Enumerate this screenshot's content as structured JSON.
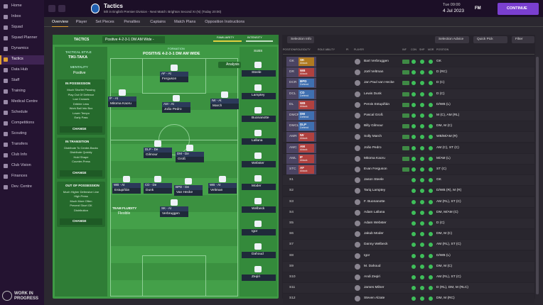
{
  "sidebar": {
    "items": [
      "Home",
      "Inbox",
      "Squad",
      "Squad Planner",
      "Dynamics",
      "Tactics",
      "Data Hub",
      "Staff",
      "Training",
      "Medical Centre",
      "Schedule",
      "Competitions",
      "Scouting",
      "Transfers",
      "Club Info",
      "Club Vision",
      "Finances",
      "Dev. Centre"
    ],
    "active": "Tactics",
    "footer": [
      "WORK IN",
      "PROGRESS"
    ]
  },
  "header": {
    "title": "Tactics",
    "subtitle": "5th in English Premier Division - Next Match: Brighton Second XI (N) (Today 20:00)",
    "time": "Tue 09:00",
    "date": "4 Jul 2023",
    "logo": "FM",
    "continue": "CONTINUE"
  },
  "tabs": [
    "Overview",
    "Player",
    "Set Pieces",
    "Penalties",
    "Captains",
    "Match Plans",
    "Opposition Instructions"
  ],
  "tactic": {
    "label": "TACTICS",
    "name": "Positive 4-2-3-1 DM AM Wide -",
    "familiarity": "FAMILIARITY",
    "intensity": "INTENSITY",
    "formation_label": "FORMATION",
    "formation": "POSITIVE 4-2-3-1 DM AM WIDE",
    "style_label": "TACTICAL STYLE",
    "style": "TIKI-TAKA",
    "mentality_label": "MENTALITY",
    "mentality": "Positive",
    "analysis": "Analysis",
    "fluidity_label": "TEAM FLUIDITY",
    "fluidity": "Flexible",
    "subs_label": "SUBS",
    "instructions": [
      {
        "title": "IN POSSESSION",
        "items": [
          "Much Shorter Passing",
          "Play Out Of Defence",
          "Low Crosses",
          "Dribble Less",
          "Work Ball Into Box",
          "Lower Tempo",
          "Early Pass"
        ],
        "button": "CHANGE"
      },
      {
        "title": "IN TRANSITION",
        "items": [
          "Distribute To Centre-Backs",
          "Distribute Quickly",
          "Hold Shape",
          "Counter-Press"
        ],
        "button": "CHANGE"
      },
      {
        "title": "OUT OF POSSESSION",
        "items": [
          "Much Higher Defensive Line",
          "High Press",
          "Much More Often",
          "Prevent Short GK",
          "Distribution"
        ],
        "button": "CHANGE"
      }
    ]
  },
  "pitch": [
    {
      "name": "Ferguson",
      "role": "AF - At"
    },
    {
      "name": "Mitoma Kaoru",
      "role": "IF - At"
    },
    {
      "name": "João Pedro",
      "role": "AM - At"
    },
    {
      "name": "March",
      "role": "IW - At"
    },
    {
      "name": "Gilmour",
      "role": "DLP - De"
    },
    {
      "name": "Groß",
      "role": "DM - De"
    },
    {
      "name": "Estupiñán",
      "role": "WB - At"
    },
    {
      "name": "Dunk",
      "role": "CD - De"
    },
    {
      "name": "Van Hecke",
      "role": "BPD - De"
    },
    {
      "name": "Veltman",
      "role": "WB - At"
    },
    {
      "name": "Verbruggen",
      "role": "SK - At"
    }
  ],
  "subs": [
    "Steele",
    "Lamptey",
    "Buonanotte",
    "Lallana",
    "Webster",
    "Moder",
    "Welbeck",
    "Igor",
    "Dahoud",
    "Zeqiri"
  ],
  "table": {
    "buttons": [
      "Selection Info",
      "Selection Advice",
      "Quick Pick",
      "Filter"
    ],
    "columns": [
      "POSITION/ROLE/DUTY",
      "ROLE ABILITY",
      "PI",
      "PLAYER",
      "INF",
      "CON",
      "SHP",
      "MOR",
      "POSITION"
    ],
    "rows": [
      {
        "pos": "GK",
        "role": "SK",
        "duty": "Attack",
        "player": "Bart Verbruggen",
        "positions": "GK"
      },
      {
        "pos": "DR",
        "role": "WB",
        "duty": "Attack",
        "player": "Joël Veltman",
        "positions": "D (RC)"
      },
      {
        "pos": "DCR",
        "role": "BPD",
        "duty": "Defend",
        "player": "Jan Paul van Hecke",
        "positions": "D (C)"
      },
      {
        "pos": "DCL",
        "role": "CD",
        "duty": "Defend",
        "player": "Lewis Dunk",
        "positions": "D (C)"
      },
      {
        "pos": "DL",
        "role": "WB",
        "duty": "Attack",
        "player": "Pervis Estupiñán",
        "positions": "D/WB (L)"
      },
      {
        "pos": "DMCR",
        "role": "DM",
        "duty": "Defend",
        "player": "Pascal Groß",
        "positions": "M (C), AM (RL)"
      },
      {
        "pos": "DMCL",
        "role": "DLP",
        "duty": "Defend",
        "player": "Billy Gilmour",
        "positions": "DM, M (C)"
      },
      {
        "pos": "AMR",
        "role": "IW",
        "duty": "Attack",
        "player": "Solly March",
        "positions": "WB/M/AM (R)"
      },
      {
        "pos": "AMC",
        "role": "AM",
        "duty": "Attack",
        "player": "João Pedro",
        "positions": "AM (C), ST (C)"
      },
      {
        "pos": "AML",
        "role": "IF",
        "duty": "Attack",
        "player": "Mitoma Kaoru",
        "positions": "M/AM (L)"
      },
      {
        "pos": "STC",
        "role": "AF",
        "duty": "Attack",
        "player": "Evan Ferguson",
        "positions": "ST (C)"
      },
      {
        "pos": "S1",
        "player": "Jason Steele",
        "positions": "GK"
      },
      {
        "pos": "S2",
        "player": "Tariq Lamptey",
        "positions": "D/WB (R), M (R)"
      },
      {
        "pos": "S3",
        "player": "F. Buonanotte",
        "positions": "AM (RL), ST (C)"
      },
      {
        "pos": "S4",
        "player": "Adam Lallana",
        "positions": "DM, M/AM (C)"
      },
      {
        "pos": "S5",
        "player": "Adam Webster",
        "positions": "D (C)"
      },
      {
        "pos": "S6",
        "player": "Jakub Moder",
        "positions": "DM, M (C)"
      },
      {
        "pos": "S7",
        "player": "Danny Welbeck",
        "positions": "AM (RL), ST (C)"
      },
      {
        "pos": "S8",
        "player": "Igor",
        "positions": "D/WB (L)"
      },
      {
        "pos": "S9",
        "player": "M. Dahoud",
        "positions": "DM, M (C)"
      },
      {
        "pos": "S10",
        "player": "Andi Zeqiri",
        "positions": "AM (RL), ST (C)"
      },
      {
        "pos": "S11",
        "player": "James Milner",
        "positions": "D (RL), DM, M (RLC)"
      },
      {
        "pos": "S12",
        "player": "Steven Alzate",
        "positions": "DM, M (RC)"
      }
    ]
  }
}
